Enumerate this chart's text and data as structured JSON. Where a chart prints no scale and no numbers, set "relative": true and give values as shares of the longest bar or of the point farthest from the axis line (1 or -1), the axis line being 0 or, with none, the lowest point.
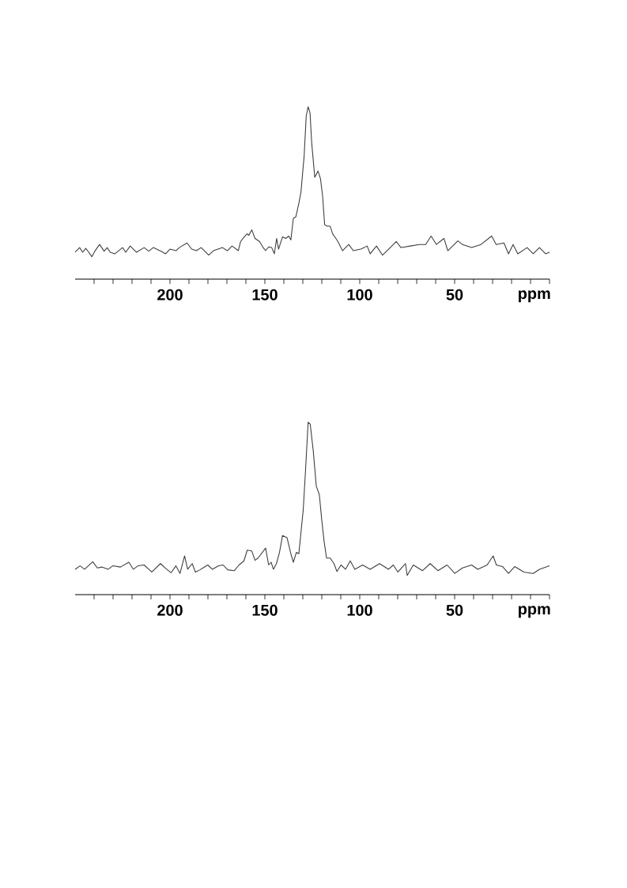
{
  "chart_data": [
    {
      "type": "line",
      "relative": true,
      "color": "#3c3c3c",
      "xlabel": "ppm",
      "xlim": [
        250,
        0
      ],
      "xticks": [
        {
          "value": 240,
          "label": null
        },
        {
          "value": 230,
          "label": null
        },
        {
          "value": 220,
          "label": null
        },
        {
          "value": 210,
          "label": null
        },
        200,
        {
          "value": 190,
          "label": null
        },
        {
          "value": 180,
          "label": null
        },
        {
          "value": 170,
          "label": null
        },
        {
          "value": 160,
          "label": null
        },
        150,
        {
          "value": 140,
          "label": null
        },
        {
          "value": 130,
          "label": null
        },
        {
          "value": 120,
          "label": null
        },
        {
          "value": 110,
          "label": null
        },
        100,
        {
          "value": 90,
          "label": null
        },
        {
          "value": 80,
          "label": null
        },
        {
          "value": 70,
          "label": null
        },
        {
          "value": 60,
          "label": null
        },
        50,
        {
          "value": 40,
          "label": null
        },
        {
          "value": 30,
          "label": null
        },
        {
          "value": 20,
          "label": null
        },
        {
          "value": 10,
          "label": null
        },
        {
          "value": 0,
          "label": null
        }
      ],
      "x": [
        250,
        247.6,
        246,
        244.4,
        242.8,
        241.2,
        239.6,
        237.1,
        234.7,
        233.1,
        231.5,
        229,
        225,
        223.3,
        221,
        217.7,
        213.6,
        211.2,
        208.8,
        204.7,
        202.3,
        200,
        196.8,
        195.1,
        191,
        188.6,
        186.1,
        183.6,
        179.6,
        177.1,
        172.3,
        169.8,
        167.3,
        164,
        162.8,
        160.9,
        159.3,
        158.5,
        156.9,
        155.2,
        152.8,
        150.9,
        149.6,
        148,
        146.4,
        145,
        143.8,
        142.8,
        140.7,
        139,
        137.4,
        136.3,
        135,
        133.7,
        132.1,
        131,
        129.3,
        128.2,
        127.2,
        126.2,
        125.3,
        123.7,
        122,
        120.7,
        119.6,
        118.5,
        117.2,
        115.6,
        114.3,
        112.6,
        111.5,
        109.1,
        105.8,
        103.4,
        99.4,
        96.1,
        94.5,
        91.2,
        88,
        85.6,
        80.7,
        78.3,
        73.4,
        68.6,
        65.3,
        62.4,
        59.6,
        55.6,
        53.6,
        48.3,
        45.9,
        41,
        36.1,
        30.5,
        28.1,
        24,
        21.6,
        19.2,
        16.7,
        11.8,
        8.6,
        5.3,
        2.1,
        0
      ],
      "values": [
        0.156,
        0.183,
        0.156,
        0.178,
        0.156,
        0.13,
        0.162,
        0.201,
        0.162,
        0.183,
        0.156,
        0.147,
        0.183,
        0.156,
        0.192,
        0.156,
        0.183,
        0.162,
        0.183,
        0.162,
        0.147,
        0.174,
        0.165,
        0.183,
        0.21,
        0.174,
        0.165,
        0.183,
        0.139,
        0.165,
        0.183,
        0.165,
        0.192,
        0.165,
        0.218,
        0.245,
        0.263,
        0.254,
        0.286,
        0.236,
        0.218,
        0.183,
        0.165,
        0.187,
        0.183,
        0.147,
        0.236,
        0.174,
        0.245,
        0.236,
        0.25,
        0.227,
        0.352,
        0.361,
        0.44,
        0.503,
        0.716,
        0.947,
        1,
        0.964,
        0.787,
        0.591,
        0.627,
        0.583,
        0.485,
        0.316,
        0.307,
        0.307,
        0.263,
        0.236,
        0.218,
        0.165,
        0.201,
        0.165,
        0.174,
        0.192,
        0.147,
        0.192,
        0.139,
        0.165,
        0.218,
        0.183,
        0.192,
        0.201,
        0.201,
        0.25,
        0.201,
        0.236,
        0.165,
        0.222,
        0.201,
        0.183,
        0.201,
        0.25,
        0.201,
        0.21,
        0.147,
        0.201,
        0.147,
        0.183,
        0.147,
        0.183,
        0.147,
        0.156
      ]
    },
    {
      "type": "line",
      "relative": true,
      "color": "#3c3c3c",
      "xlabel": "ppm",
      "xlim": [
        250,
        0
      ],
      "xticks": [
        {
          "value": 240,
          "label": null
        },
        {
          "value": 230,
          "label": null
        },
        {
          "value": 220,
          "label": null
        },
        {
          "value": 210,
          "label": null
        },
        200,
        {
          "value": 190,
          "label": null
        },
        {
          "value": 180,
          "label": null
        },
        {
          "value": 170,
          "label": null
        },
        {
          "value": 160,
          "label": null
        },
        150,
        {
          "value": 140,
          "label": null
        },
        {
          "value": 130,
          "label": null
        },
        {
          "value": 120,
          "label": null
        },
        {
          "value": 110,
          "label": null
        },
        100,
        {
          "value": 90,
          "label": null
        },
        {
          "value": 80,
          "label": null
        },
        {
          "value": 70,
          "label": null
        },
        {
          "value": 60,
          "label": null
        },
        50,
        {
          "value": 40,
          "label": null
        },
        {
          "value": 30,
          "label": null
        },
        {
          "value": 20,
          "label": null
        },
        {
          "value": 10,
          "label": null
        },
        {
          "value": 0,
          "label": null
        }
      ],
      "x": [
        250,
        247.4,
        245,
        243.4,
        240.7,
        238.3,
        235.9,
        232.6,
        230.2,
        226.1,
        221.7,
        219.3,
        216.9,
        213.6,
        211.2,
        209.6,
        205,
        202.6,
        199.4,
        196.9,
        194.7,
        192.3,
        190.7,
        188.3,
        186.6,
        184.2,
        180.1,
        177.7,
        174.4,
        172,
        169.6,
        166.1,
        163.6,
        161,
        159.3,
        156.9,
        155.2,
        153.6,
        149.6,
        148,
        146.7,
        145.5,
        143.9,
        142.3,
        140.7,
        138.3,
        136.3,
        135,
        133.4,
        132.1,
        131,
        129.8,
        128.5,
        127.2,
        126.1,
        124.5,
        122.9,
        121.3,
        120.1,
        118.8,
        117.5,
        115.6,
        113.6,
        112,
        109.9,
        107.5,
        105,
        102.6,
        98.5,
        94.5,
        89.6,
        84.8,
        82.3,
        79.9,
        75.9,
        75,
        71.8,
        66.9,
        62.9,
        58.8,
        54,
        49.9,
        45.9,
        41,
        37.8,
        32.9,
        29.7,
        28,
        24.8,
        21.6,
        18.3,
        13.5,
        8.6,
        5.3,
        0
      ],
      "values": [
        0.147,
        0.167,
        0.147,
        0.163,
        0.191,
        0.155,
        0.16,
        0.147,
        0.167,
        0.16,
        0.188,
        0.147,
        0.167,
        0.172,
        0.147,
        0.131,
        0.18,
        0.155,
        0.127,
        0.167,
        0.123,
        0.225,
        0.147,
        0.18,
        0.131,
        0.144,
        0.172,
        0.147,
        0.167,
        0.172,
        0.144,
        0.139,
        0.172,
        0.196,
        0.258,
        0.253,
        0.199,
        0.212,
        0.27,
        0.172,
        0.188,
        0.147,
        0.18,
        0.245,
        0.343,
        0.33,
        0.237,
        0.188,
        0.245,
        0.237,
        0.359,
        0.49,
        0.735,
        1,
        0.989,
        0.833,
        0.629,
        0.58,
        0.441,
        0.31,
        0.212,
        0.212,
        0.18,
        0.134,
        0.172,
        0.147,
        0.196,
        0.147,
        0.172,
        0.147,
        0.18,
        0.147,
        0.172,
        0.131,
        0.18,
        0.111,
        0.172,
        0.139,
        0.18,
        0.139,
        0.172,
        0.123,
        0.155,
        0.172,
        0.147,
        0.172,
        0.225,
        0.172,
        0.163,
        0.123,
        0.163,
        0.131,
        0.123,
        0.147,
        0.167
      ]
    }
  ]
}
